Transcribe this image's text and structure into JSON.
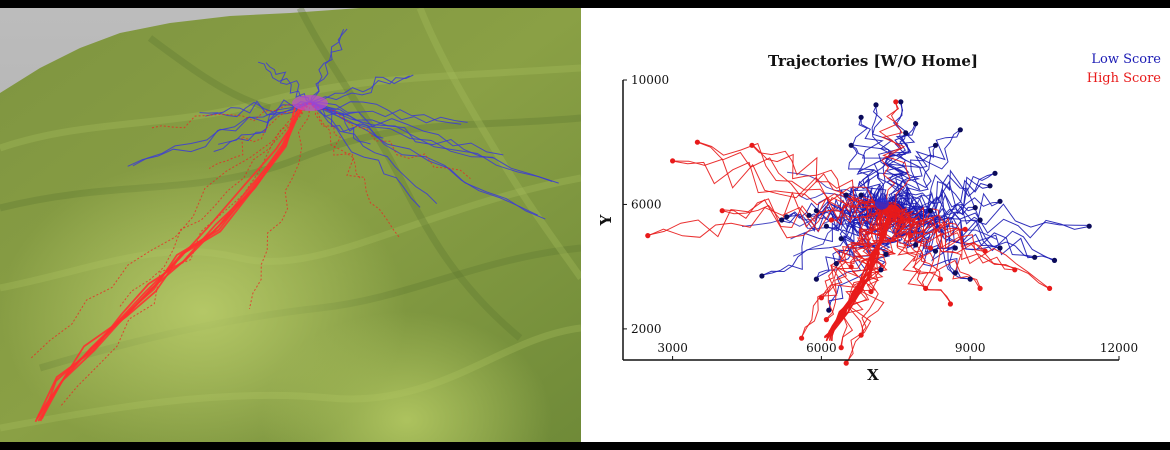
{
  "chart_data": {
    "type": "line",
    "title": "Trajectories [W/O Home]",
    "xlabel": "X",
    "ylabel": "Y",
    "xlim": [
      2000,
      12000
    ],
    "ylim": [
      1000,
      10000
    ],
    "xticks": [
      3000,
      6000,
      9000,
      12000
    ],
    "yticks": [
      2000,
      6000,
      10000
    ],
    "grid": false,
    "legend_position": "top-right",
    "center": [
      7300,
      5900
    ],
    "series": [
      {
        "name": "Low Score",
        "color": "#1a1ab4",
        "endpoint_color": "#0b0b5a",
        "endpoints": [
          [
            7100,
            9200
          ],
          [
            7700,
            8300
          ],
          [
            6800,
            8800
          ],
          [
            7600,
            9300
          ],
          [
            7900,
            8600
          ],
          [
            8800,
            8400
          ],
          [
            8300,
            7900
          ],
          [
            6600,
            7900
          ],
          [
            6800,
            6300
          ],
          [
            9500,
            7000
          ],
          [
            9400,
            6600
          ],
          [
            9600,
            6100
          ],
          [
            9100,
            5900
          ],
          [
            11400,
            5300
          ],
          [
            10700,
            4200
          ],
          [
            10300,
            4300
          ],
          [
            9600,
            4600
          ],
          [
            9200,
            5500
          ],
          [
            8700,
            4600
          ],
          [
            8200,
            5800
          ],
          [
            7900,
            4700
          ],
          [
            7300,
            4400
          ],
          [
            6400,
            4900
          ],
          [
            6100,
            5300
          ],
          [
            5900,
            5800
          ],
          [
            5300,
            5600
          ],
          [
            5200,
            5500
          ],
          [
            4800,
            3700
          ],
          [
            5900,
            3600
          ],
          [
            6150,
            2600
          ],
          [
            6300,
            4100
          ],
          [
            7200,
            3900
          ],
          [
            8700,
            3800
          ],
          [
            8300,
            4500
          ],
          [
            9000,
            3600
          ],
          [
            5750,
            5650
          ],
          [
            6500,
            6300
          ]
        ]
      },
      {
        "name": "High Score",
        "color": "#e81a1a",
        "endpoint_color": "#e81a1a",
        "endpoints": [
          [
            7500,
            9300
          ],
          [
            3500,
            8000
          ],
          [
            3000,
            7400
          ],
          [
            4600,
            7900
          ],
          [
            2500,
            5000
          ],
          [
            4000,
            5800
          ],
          [
            6200,
            5500
          ],
          [
            9900,
            3900
          ],
          [
            10600,
            3300
          ],
          [
            9200,
            3300
          ],
          [
            8400,
            3600
          ],
          [
            8100,
            3300
          ],
          [
            8200,
            4600
          ],
          [
            7000,
            3200
          ],
          [
            6000,
            3000
          ],
          [
            6100,
            2300
          ],
          [
            5600,
            1700
          ],
          [
            6400,
            1400
          ],
          [
            6800,
            1800
          ],
          [
            6500,
            900
          ],
          [
            8900,
            5200
          ],
          [
            7800,
            5000
          ],
          [
            6600,
            4000
          ],
          [
            9300,
            4500
          ],
          [
            8600,
            2800
          ]
        ]
      }
    ]
  }
}
